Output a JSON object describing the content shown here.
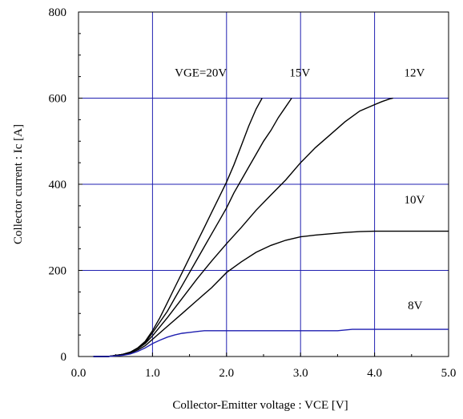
{
  "chart_data": {
    "type": "line",
    "xlabel": "Collector-Emitter voltage : VCE [V]",
    "ylabel": "Collector current : Ic [A]",
    "xlim": [
      0,
      5
    ],
    "ylim": [
      0,
      800
    ],
    "x_ticks": [
      "0.0",
      "1.0",
      "2.0",
      "3.0",
      "4.0",
      "5.0"
    ],
    "y_ticks": [
      "0",
      "200",
      "400",
      "600",
      "800"
    ],
    "grid": true,
    "grid_color": "#1f1fb0",
    "series": [
      {
        "name": "VGE=20V",
        "color": "#000000",
        "x": [
          0.2,
          0.4,
          0.6,
          0.7,
          0.8,
          0.9,
          1.0,
          1.1,
          1.2,
          1.3,
          1.4,
          1.5,
          1.6,
          1.7,
          1.8,
          1.9,
          2.0,
          2.1,
          2.2,
          2.3,
          2.4,
          2.48
        ],
        "y": [
          0,
          0,
          5,
          10,
          20,
          35,
          60,
          90,
          125,
          160,
          195,
          230,
          265,
          300,
          335,
          370,
          405,
          445,
          490,
          535,
          575,
          600
        ]
      },
      {
        "name": "15V",
        "color": "#000000",
        "x": [
          0.2,
          0.4,
          0.6,
          0.7,
          0.8,
          0.9,
          1.0,
          1.1,
          1.2,
          1.3,
          1.4,
          1.5,
          1.6,
          1.7,
          1.8,
          1.9,
          2.0,
          2.1,
          2.2,
          2.3,
          2.4,
          2.5,
          2.6,
          2.7,
          2.8,
          2.88
        ],
        "y": [
          0,
          0,
          5,
          10,
          20,
          32,
          55,
          80,
          105,
          135,
          165,
          195,
          225,
          255,
          285,
          315,
          345,
          380,
          410,
          440,
          470,
          500,
          525,
          555,
          580,
          600
        ]
      },
      {
        "name": "12V",
        "color": "#000000",
        "x": [
          0.2,
          0.4,
          0.6,
          0.7,
          0.8,
          0.9,
          1.0,
          1.2,
          1.4,
          1.6,
          1.8,
          2.0,
          2.2,
          2.4,
          2.6,
          2.8,
          3.0,
          3.2,
          3.4,
          3.6,
          3.8,
          4.0,
          4.1,
          4.2,
          4.25
        ],
        "y": [
          0,
          0,
          5,
          10,
          18,
          30,
          48,
          90,
          135,
          180,
          222,
          262,
          300,
          340,
          375,
          410,
          450,
          485,
          515,
          545,
          570,
          585,
          592,
          598,
          600
        ]
      },
      {
        "name": "10V",
        "color": "#000000",
        "x": [
          0.2,
          0.4,
          0.6,
          0.7,
          0.8,
          0.9,
          1.0,
          1.2,
          1.4,
          1.6,
          1.8,
          2.0,
          2.2,
          2.4,
          2.6,
          2.8,
          3.0,
          3.2,
          3.4,
          3.6,
          3.8,
          4.0,
          4.5,
          5.0
        ],
        "y": [
          0,
          0,
          4,
          8,
          15,
          25,
          40,
          70,
          100,
          130,
          160,
          195,
          220,
          242,
          258,
          270,
          278,
          282,
          285,
          288,
          290,
          291,
          291,
          291
        ]
      },
      {
        "name": "8V",
        "color": "#1f1fb0",
        "x": [
          0.2,
          0.4,
          0.6,
          0.7,
          0.8,
          0.9,
          1.0,
          1.1,
          1.2,
          1.3,
          1.4,
          1.5,
          1.6,
          1.7,
          1.8,
          2.0,
          2.5,
          3.0,
          3.5,
          3.7,
          4.0,
          4.5,
          5.0
        ],
        "y": [
          0,
          0,
          3,
          6,
          12,
          20,
          30,
          38,
          45,
          50,
          54,
          56,
          58,
          60,
          60,
          60,
          60,
          60,
          60,
          63,
          63,
          63,
          63
        ]
      }
    ],
    "labels": [
      {
        "text": "VGE=20V",
        "x": 1.3,
        "y": 650
      },
      {
        "text": "15V",
        "x": 2.85,
        "y": 650
      },
      {
        "text": "12V",
        "x": 4.4,
        "y": 650
      },
      {
        "text": "10V",
        "x": 4.4,
        "y": 355
      },
      {
        "text": "8V",
        "x": 4.45,
        "y": 110
      }
    ]
  }
}
